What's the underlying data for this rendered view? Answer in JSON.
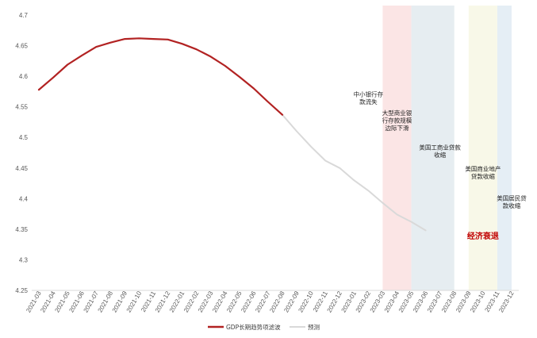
{
  "chart_data": {
    "type": "line",
    "categories": [
      "2021-03",
      "2021-04",
      "2021-05",
      "2021-06",
      "2021-07",
      "2021-08",
      "2021-09",
      "2021-10",
      "2021-11",
      "2021-12",
      "2022-01",
      "2022-02",
      "2022-03",
      "2022-04",
      "2022-05",
      "2022-06",
      "2022-07",
      "2022-08",
      "2022-09",
      "2022-10",
      "2022-11",
      "2022-12",
      "2023-01",
      "2023-02",
      "2023-03",
      "2023-04",
      "2023-05",
      "2023-06",
      "2023-07",
      "2023-08",
      "2023-09",
      "2023-10",
      "2023-11",
      "2023-12"
    ],
    "ylim": [
      4.25,
      4.7
    ],
    "yticks": [
      "4.25",
      "4.3",
      "4.35",
      "4.4",
      "4.45",
      "4.5",
      "4.55",
      "4.6",
      "4.65",
      "4.7"
    ],
    "series": [
      {
        "name": "GDP长期趋势项滤波",
        "color": "#b22222",
        "values": [
          4.578,
          4.598,
          4.619,
          4.634,
          4.648,
          4.655,
          4.661,
          4.662,
          4.661,
          4.66,
          4.653,
          4.644,
          4.632,
          4.617,
          4.599,
          4.58,
          4.558,
          4.537,
          null,
          null,
          null,
          null,
          null,
          null,
          null,
          null,
          null,
          null,
          null,
          null,
          null,
          null,
          null,
          null
        ]
      },
      {
        "name": "预测",
        "color": "#d9d9d9",
        "values": [
          null,
          null,
          null,
          null,
          null,
          null,
          null,
          null,
          null,
          null,
          null,
          null,
          null,
          null,
          null,
          null,
          null,
          4.537,
          4.51,
          4.485,
          4.462,
          4.45,
          4.43,
          4.413,
          4.393,
          4.374,
          4.362,
          4.348,
          null,
          null,
          null,
          null,
          null,
          null
        ]
      }
    ],
    "shaded_regions": [
      {
        "from": "2023-03",
        "to": "2023-05",
        "color": "#fbe5e5"
      },
      {
        "from": "2023-05",
        "to": "2023-08",
        "color": "#e6edf1"
      },
      {
        "from": "2023-09",
        "to": "2023-11",
        "color": "#f8f8e8"
      },
      {
        "from": "2023-11",
        "to": "2023-12",
        "color": "#e5eef5"
      }
    ],
    "annotations": [
      {
        "lines": [
          "中小银行存",
          "款流失"
        ],
        "x": "2023-02",
        "y": 4.565,
        "style": "normal"
      },
      {
        "lines": [
          "大型商业银",
          "行存款规模",
          "边际下滑"
        ],
        "x": "2023-04",
        "y": 4.528,
        "style": "normal"
      },
      {
        "lines": [
          "美国工商业贷款",
          "收缩"
        ],
        "x": "2023-07",
        "y": 4.478,
        "style": "normal"
      },
      {
        "lines": [
          "美国商业地产",
          "贷款收缩"
        ],
        "x": "2023-10",
        "y": 4.443,
        "style": "normal"
      },
      {
        "lines": [
          "美国居民贷",
          "款收缩"
        ],
        "x": "2023-12",
        "y": 4.395,
        "style": "normal"
      },
      {
        "lines": [
          "经济衰退"
        ],
        "x": "2023-10",
        "y": 4.338,
        "style": "red"
      }
    ],
    "legend_position": "bottom-center",
    "grid": false
  }
}
